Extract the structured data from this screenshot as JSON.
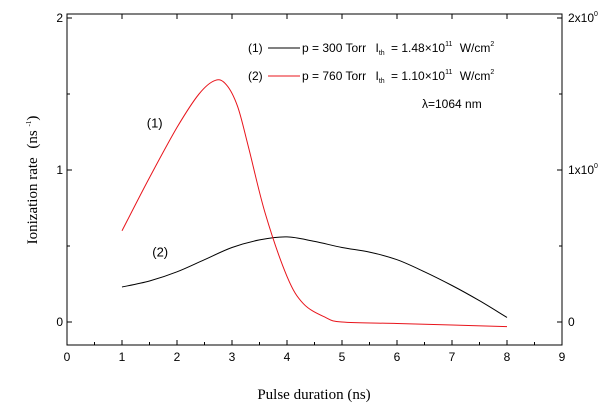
{
  "chart_data": {
    "type": "line",
    "xlabel": "Pulse duration (ns)",
    "ylabel_main": "Ionization rate",
    "ylabel_unit": "(ns",
    "ylabel_exp": "-1",
    "ylabel_close": ")",
    "xlim": [
      0,
      9
    ],
    "ylim": [
      -0.15,
      2
    ],
    "y2lim": [
      -0.15,
      2
    ],
    "xticks": [
      "0",
      "1",
      "2",
      "3",
      "4",
      "5",
      "6",
      "7",
      "8",
      "9"
    ],
    "yticks": [
      "0",
      "1",
      "2"
    ],
    "y2ticks": [
      {
        "base": "0",
        "exp": ""
      },
      {
        "base": "1x10",
        "exp": "0"
      },
      {
        "base": "2x10",
        "exp": "0"
      }
    ],
    "grid": false,
    "legend_position": "top-right",
    "series": [
      {
        "marker": "(1)",
        "name_parts": {
          "p": "p = 300 Torr",
          "I": "I",
          "sub": "th",
          "eq": "= 1.48×10",
          "exp": "11",
          "unit": "W/cm",
          "unit_exp": "2"
        },
        "color": "#000000",
        "x": [
          1.0,
          1.5,
          2.0,
          2.5,
          3.0,
          3.5,
          4.0,
          4.5,
          5.0,
          5.5,
          6.0,
          6.5,
          7.0,
          7.5,
          8.0
        ],
        "y": [
          0.23,
          0.27,
          0.33,
          0.41,
          0.49,
          0.54,
          0.56,
          0.53,
          0.49,
          0.46,
          0.41,
          0.33,
          0.24,
          0.14,
          0.03
        ]
      },
      {
        "marker": "(2)",
        "name_parts": {
          "p": "p = 760 Torr",
          "I": "I",
          "sub": "th",
          "eq": "= 1.10×10",
          "exp": "11",
          "unit": "W/cm",
          "unit_exp": "2"
        },
        "color": "#e8141b",
        "x": [
          1.0,
          1.5,
          2.0,
          2.4,
          2.7,
          2.9,
          3.1,
          3.3,
          3.6,
          4.0,
          4.3,
          4.7,
          5.0,
          6.0,
          7.0,
          8.0
        ],
        "y": [
          0.6,
          0.95,
          1.28,
          1.5,
          1.59,
          1.56,
          1.42,
          1.15,
          0.72,
          0.3,
          0.12,
          0.03,
          0.0,
          -0.01,
          -0.02,
          -0.03
        ]
      }
    ],
    "annotations": [
      {
        "text": "(1)",
        "x": 1.45,
        "y": 1.28
      },
      {
        "text": "(2)",
        "x": 1.55,
        "y": 0.43
      }
    ],
    "wavelength": "λ=1064 nm"
  }
}
